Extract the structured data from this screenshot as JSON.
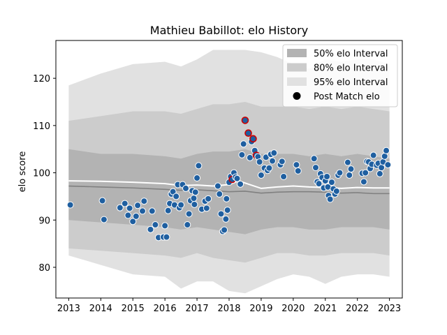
{
  "chart_data": {
    "type": "scatter",
    "title": "Mathieu Babillot: elo History",
    "xlabel": "",
    "ylabel": "elo score",
    "xlim": [
      2012.6,
      2023.4
    ],
    "ylim": [
      73.5,
      128
    ],
    "x_ticks": [
      2013,
      2014,
      2015,
      2016,
      2017,
      2018,
      2019,
      2020,
      2021,
      2022,
      2023
    ],
    "x_tick_labels": [
      "2013",
      "2014",
      "2015",
      "2016",
      "2017",
      "2018",
      "2019",
      "2020",
      "2021",
      "2022",
      "2023"
    ],
    "y_ticks": [
      80,
      90,
      100,
      110,
      120
    ],
    "y_tick_labels": [
      "80",
      "90",
      "100",
      "110",
      "120"
    ],
    "grid": false,
    "legend_position": "top-right",
    "legend": [
      {
        "label": "50% elo Interval",
        "kind": "band",
        "color": "#b3b3b3"
      },
      {
        "label": "80% elo Interval",
        "kind": "band",
        "color": "#cccccc"
      },
      {
        "label": "95% elo Interval",
        "kind": "band",
        "color": "#e1e1e1"
      },
      {
        "label": "Post Match elo",
        "kind": "marker",
        "color": "#000000"
      }
    ],
    "colors": {
      "point": "#1f5fa0",
      "point_edge": "#ffffff",
      "highlight_edge": "#cc0000",
      "median_line": "#808080",
      "mean_line": "#ffffff"
    },
    "series": [
      {
        "name": "95% elo Interval",
        "kind": "band",
        "x": [
          2013.0,
          2014.0,
          2015.0,
          2016.0,
          2016.5,
          2017.0,
          2017.5,
          2018.0,
          2018.5,
          2019.0,
          2019.5,
          2020.0,
          2020.5,
          2021.0,
          2021.5,
          2022.0,
          2022.5,
          2023.0
        ],
        "upper": [
          118.5,
          121,
          123,
          123.5,
          122.5,
          124,
          126,
          126,
          126,
          125.5,
          124.5,
          123,
          122,
          124,
          123.5,
          124,
          124,
          123
        ],
        "lower": [
          82.5,
          80.5,
          78.5,
          78,
          75.5,
          77,
          77,
          75,
          74.5,
          76,
          77.5,
          78.5,
          78,
          76.5,
          78,
          78.5,
          78.5,
          78
        ]
      },
      {
        "name": "80% elo Interval",
        "kind": "band",
        "x": [
          2013.0,
          2014.0,
          2015.0,
          2016.0,
          2016.5,
          2017.0,
          2017.5,
          2018.0,
          2018.5,
          2019.0,
          2019.5,
          2020.0,
          2020.5,
          2021.0,
          2021.5,
          2022.0,
          2022.5,
          2023.0
        ],
        "upper": [
          111,
          112,
          113,
          113,
          112.5,
          113.5,
          114.5,
          114.5,
          115,
          114,
          114,
          114,
          113.5,
          114,
          113.5,
          114,
          113.5,
          113
        ],
        "lower": [
          84,
          83.5,
          83,
          82.5,
          82,
          83,
          82,
          81.5,
          81,
          82,
          83,
          83,
          82.5,
          82.5,
          83,
          83,
          83,
          82.5
        ]
      },
      {
        "name": "50% elo Interval",
        "kind": "band",
        "x": [
          2013.0,
          2014.0,
          2015.0,
          2016.0,
          2016.5,
          2017.0,
          2017.5,
          2018.0,
          2018.5,
          2019.0,
          2019.5,
          2020.0,
          2020.5,
          2021.0,
          2021.5,
          2022.0,
          2022.5,
          2023.0
        ],
        "upper": [
          105,
          104,
          104,
          103.5,
          103,
          104,
          104.5,
          104.5,
          105,
          104,
          104,
          104,
          103.5,
          104,
          103.5,
          104,
          103.5,
          103
        ],
        "lower": [
          90,
          89.5,
          89,
          88.5,
          88,
          88.5,
          88,
          87.5,
          87,
          88,
          88.5,
          88.5,
          88,
          88,
          88.5,
          88.5,
          88.5,
          88
        ]
      },
      {
        "name": "median",
        "kind": "line",
        "x": [
          2013.0,
          2014.0,
          2015.0,
          2016.0,
          2016.5,
          2017.0,
          2017.5,
          2018.0,
          2018.5,
          2019.0,
          2019.5,
          2020.0,
          2020.5,
          2021.0,
          2021.5,
          2022.0,
          2022.5,
          2023.0
        ],
        "values": [
          97.2,
          97.0,
          96.8,
          96.5,
          96.3,
          96.4,
          96.2,
          96.0,
          96.1,
          95.7,
          95.9,
          96.0,
          96.0,
          95.9,
          95.7,
          95.8,
          95.6,
          95.6
        ]
      },
      {
        "name": "mean",
        "kind": "line",
        "x": [
          2013.0,
          2014.0,
          2015.0,
          2016.0,
          2016.5,
          2017.0,
          2017.5,
          2018.0,
          2018.3,
          2018.6,
          2019.0,
          2019.5,
          2020.0,
          2020.5,
          2021.0,
          2021.5,
          2022.0,
          2022.5,
          2023.0
        ],
        "values": [
          98.3,
          98.2,
          98.0,
          97.7,
          97.3,
          97.4,
          97.2,
          97.5,
          98.3,
          97.6,
          96.7,
          97.0,
          97.2,
          97.0,
          96.9,
          96.7,
          96.9,
          96.8,
          96.8
        ]
      },
      {
        "name": "Post Match elo",
        "kind": "points",
        "x": [
          2013.05,
          2014.05,
          2014.1,
          2014.6,
          2014.75,
          2014.85,
          2014.9,
          2015.0,
          2015.1,
          2015.15,
          2015.3,
          2015.35,
          2015.55,
          2015.6,
          2015.7,
          2015.8,
          2015.95,
          2016.0,
          2016.05,
          2016.1,
          2016.15,
          2016.2,
          2016.25,
          2016.3,
          2016.35,
          2016.4,
          2016.45,
          2016.5,
          2016.55,
          2016.65,
          2016.7,
          2016.75,
          2016.8,
          2016.85,
          2016.9,
          2016.92,
          2016.95,
          2017.0,
          2017.05,
          2017.15,
          2017.25,
          2017.3,
          2017.35,
          2017.65,
          2017.7,
          2017.75,
          2017.8,
          2017.85,
          2017.9,
          2017.92,
          2017.95,
          2018.0,
          2018.05,
          2018.1,
          2018.15,
          2018.2,
          2018.25,
          2018.35,
          2018.4,
          2018.45,
          2018.5,
          2018.6,
          2018.65,
          2018.7,
          2018.75,
          2018.8,
          2018.85,
          2018.9,
          2018.95,
          2019.0,
          2019.1,
          2019.15,
          2019.2,
          2019.25,
          2019.3,
          2019.35,
          2019.4,
          2019.6,
          2019.65,
          2019.7,
          2020.1,
          2020.15,
          2020.65,
          2020.7,
          2020.75,
          2020.8,
          2020.85,
          2020.9,
          2020.95,
          2021.0,
          2021.05,
          2021.08,
          2021.1,
          2021.15,
          2021.2,
          2021.25,
          2021.3,
          2021.35,
          2021.4,
          2021.45,
          2021.7,
          2021.75,
          2021.8,
          2022.15,
          2022.2,
          2022.25,
          2022.3,
          2022.35,
          2022.4,
          2022.45,
          2022.5,
          2022.6,
          2022.65,
          2022.7,
          2022.75,
          2022.8,
          2022.85,
          2022.9,
          2022.95
        ],
        "values": [
          93.2,
          94.1,
          90.1,
          92.6,
          93.5,
          91,
          92.5,
          89.7,
          90.8,
          93.1,
          91.9,
          94,
          88,
          91.9,
          89,
          86.3,
          86.4,
          88.8,
          86.4,
          92,
          93.5,
          95.5,
          96,
          93.2,
          95,
          97.5,
          92.6,
          93.2,
          97.5,
          96.7,
          89,
          91.3,
          94.1,
          96.2,
          94.6,
          93.3,
          95.9,
          98.9,
          101.5,
          92.3,
          94,
          92.5,
          94.5,
          97.2,
          95.5,
          91.3,
          87.6,
          87.9,
          90.2,
          94.5,
          92.1,
          98,
          99.2,
          98.6,
          100,
          99.1,
          98.8,
          97.6,
          103.8,
          106.1,
          111.1,
          108.4,
          103.2,
          106.6,
          107.2,
          104.7,
          103.7,
          103.4,
          102.3,
          99.5,
          101,
          103.3,
          100.5,
          101,
          103.9,
          102.5,
          104.2,
          101.7,
          102.4,
          99.2,
          101.7,
          100.4,
          103,
          101.1,
          98.1,
          97.7,
          99.8,
          99,
          96.8,
          98.3,
          99.2,
          97,
          95.2,
          94.4,
          98,
          96.6,
          95.5,
          96.1,
          99.5,
          100,
          102.2,
          99.5,
          100.8,
          99.9,
          98.1,
          100,
          102.4,
          102.3,
          100.9,
          101.8,
          103.7,
          101.6,
          102,
          99.8,
          101.1,
          102.3,
          103.5,
          104.7,
          101.7
        ],
        "highlight_indices": [
          53,
          60,
          61,
          64,
          66
        ]
      }
    ]
  }
}
